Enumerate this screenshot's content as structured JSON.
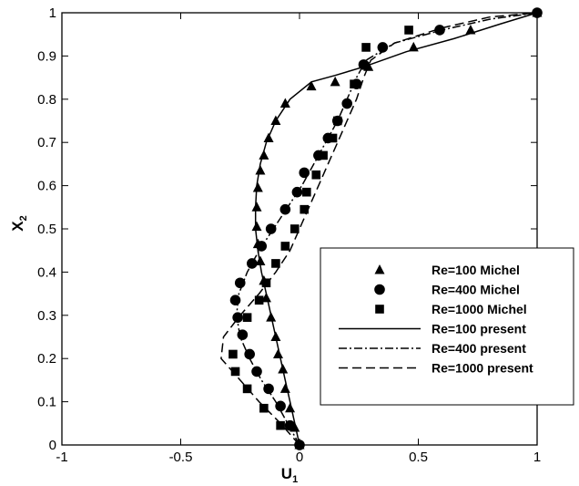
{
  "chart_data": {
    "type": "scatter",
    "xlabel": "U",
    "xlabel_sub": "1",
    "ylabel": "X",
    "ylabel_sub": "2",
    "xlim": [
      -1,
      1
    ],
    "ylim": [
      0,
      1
    ],
    "xticks": [
      "-1",
      "-0.5",
      "0",
      "0.5",
      "1"
    ],
    "xtick_values": [
      -1,
      -0.5,
      0,
      0.5,
      1
    ],
    "yticks": [
      "0",
      "0.1",
      "0.2",
      "0.3",
      "0.4",
      "0.5",
      "0.6",
      "0.7",
      "0.8",
      "0.9",
      "1"
    ],
    "ytick_values": [
      0,
      0.1,
      0.2,
      0.3,
      0.4,
      0.5,
      0.6,
      0.7,
      0.8,
      0.9,
      1
    ],
    "grid": false,
    "legend_position": "bottom-right",
    "series": [
      {
        "name": "Re=100 Michel",
        "kind": "markers",
        "marker": "triangle",
        "points": [
          [
            0,
            0
          ],
          [
            -0.02,
            0.04
          ],
          [
            -0.04,
            0.085
          ],
          [
            -0.06,
            0.13
          ],
          [
            -0.07,
            0.175
          ],
          [
            -0.09,
            0.21
          ],
          [
            -0.1,
            0.25
          ],
          [
            -0.12,
            0.295
          ],
          [
            -0.14,
            0.34
          ],
          [
            -0.15,
            0.38
          ],
          [
            -0.165,
            0.425
          ],
          [
            -0.175,
            0.465
          ],
          [
            -0.18,
            0.505
          ],
          [
            -0.18,
            0.55
          ],
          [
            -0.175,
            0.595
          ],
          [
            -0.165,
            0.635
          ],
          [
            -0.15,
            0.67
          ],
          [
            -0.13,
            0.71
          ],
          [
            -0.1,
            0.75
          ],
          [
            -0.06,
            0.79
          ],
          [
            0.05,
            0.83
          ],
          [
            0.15,
            0.84
          ],
          [
            0.29,
            0.875
          ],
          [
            0.48,
            0.92
          ],
          [
            0.72,
            0.96
          ],
          [
            1,
            1
          ]
        ]
      },
      {
        "name": "Re=400 Michel",
        "kind": "markers",
        "marker": "circle",
        "points": [
          [
            0,
            0
          ],
          [
            -0.04,
            0.045
          ],
          [
            -0.08,
            0.09
          ],
          [
            -0.13,
            0.13
          ],
          [
            -0.18,
            0.17
          ],
          [
            -0.21,
            0.21
          ],
          [
            -0.24,
            0.255
          ],
          [
            -0.26,
            0.295
          ],
          [
            -0.27,
            0.335
          ],
          [
            -0.25,
            0.375
          ],
          [
            -0.2,
            0.42
          ],
          [
            -0.16,
            0.46
          ],
          [
            -0.12,
            0.5
          ],
          [
            -0.06,
            0.545
          ],
          [
            -0.01,
            0.585
          ],
          [
            0.02,
            0.63
          ],
          [
            0.08,
            0.67
          ],
          [
            0.12,
            0.71
          ],
          [
            0.16,
            0.75
          ],
          [
            0.2,
            0.79
          ],
          [
            0.24,
            0.835
          ],
          [
            0.27,
            0.88
          ],
          [
            0.35,
            0.92
          ],
          [
            0.59,
            0.96
          ],
          [
            1,
            1
          ]
        ]
      },
      {
        "name": "Re=1000 Michel",
        "kind": "markers",
        "marker": "square",
        "points": [
          [
            -0.08,
            0.045
          ],
          [
            -0.15,
            0.085
          ],
          [
            -0.22,
            0.13
          ],
          [
            -0.27,
            0.17
          ],
          [
            -0.28,
            0.21
          ],
          [
            -0.22,
            0.295
          ],
          [
            -0.17,
            0.335
          ],
          [
            -0.14,
            0.375
          ],
          [
            -0.1,
            0.42
          ],
          [
            -0.06,
            0.46
          ],
          [
            -0.02,
            0.5
          ],
          [
            0.02,
            0.545
          ],
          [
            0.03,
            0.585
          ],
          [
            0.07,
            0.625
          ],
          [
            0.1,
            0.67
          ],
          [
            0.14,
            0.71
          ],
          [
            0.16,
            0.75
          ],
          [
            0.23,
            0.835
          ],
          [
            0.28,
            0.92
          ],
          [
            0.46,
            0.96
          ]
        ]
      },
      {
        "name": "Re=100 present",
        "kind": "line",
        "dash": "solid",
        "points": [
          [
            0,
            0
          ],
          [
            -0.02,
            0.05
          ],
          [
            -0.04,
            0.1
          ],
          [
            -0.06,
            0.15
          ],
          [
            -0.08,
            0.2
          ],
          [
            -0.1,
            0.25
          ],
          [
            -0.12,
            0.3
          ],
          [
            -0.14,
            0.35
          ],
          [
            -0.16,
            0.4
          ],
          [
            -0.175,
            0.45
          ],
          [
            -0.185,
            0.5
          ],
          [
            -0.185,
            0.55
          ],
          [
            -0.18,
            0.6
          ],
          [
            -0.165,
            0.65
          ],
          [
            -0.14,
            0.7
          ],
          [
            -0.1,
            0.75
          ],
          [
            -0.04,
            0.8
          ],
          [
            0.05,
            0.84
          ],
          [
            0.15,
            0.855
          ],
          [
            0.27,
            0.875
          ],
          [
            0.45,
            0.91
          ],
          [
            0.65,
            0.94
          ],
          [
            0.85,
            0.975
          ],
          [
            1,
            1
          ]
        ]
      },
      {
        "name": "Re=400 present",
        "kind": "line",
        "dash": "dashdot",
        "points": [
          [
            0,
            0
          ],
          [
            -0.05,
            0.05
          ],
          [
            -0.1,
            0.1
          ],
          [
            -0.16,
            0.15
          ],
          [
            -0.21,
            0.2
          ],
          [
            -0.25,
            0.25
          ],
          [
            -0.265,
            0.3
          ],
          [
            -0.255,
            0.35
          ],
          [
            -0.22,
            0.4
          ],
          [
            -0.17,
            0.45
          ],
          [
            -0.11,
            0.5
          ],
          [
            -0.05,
            0.55
          ],
          [
            0.01,
            0.6
          ],
          [
            0.06,
            0.65
          ],
          [
            0.11,
            0.7
          ],
          [
            0.16,
            0.75
          ],
          [
            0.2,
            0.8
          ],
          [
            0.24,
            0.85
          ],
          [
            0.28,
            0.89
          ],
          [
            0.4,
            0.93
          ],
          [
            0.6,
            0.96
          ],
          [
            0.8,
            0.985
          ],
          [
            1,
            1
          ]
        ]
      },
      {
        "name": "Re=1000 present",
        "kind": "line",
        "dash": "dashed",
        "points": [
          [
            0,
            0
          ],
          [
            -0.08,
            0.05
          ],
          [
            -0.17,
            0.1
          ],
          [
            -0.25,
            0.15
          ],
          [
            -0.33,
            0.2
          ],
          [
            -0.32,
            0.25
          ],
          [
            -0.25,
            0.3
          ],
          [
            -0.17,
            0.35
          ],
          [
            -0.1,
            0.4
          ],
          [
            -0.04,
            0.45
          ],
          [
            0,
            0.5
          ],
          [
            0.04,
            0.55
          ],
          [
            0.08,
            0.6
          ],
          [
            0.12,
            0.65
          ],
          [
            0.16,
            0.7
          ],
          [
            0.2,
            0.75
          ],
          [
            0.24,
            0.8
          ],
          [
            0.27,
            0.85
          ],
          [
            0.3,
            0.89
          ],
          [
            0.4,
            0.93
          ],
          [
            0.6,
            0.965
          ],
          [
            0.8,
            0.99
          ],
          [
            1,
            1
          ]
        ]
      }
    ]
  }
}
